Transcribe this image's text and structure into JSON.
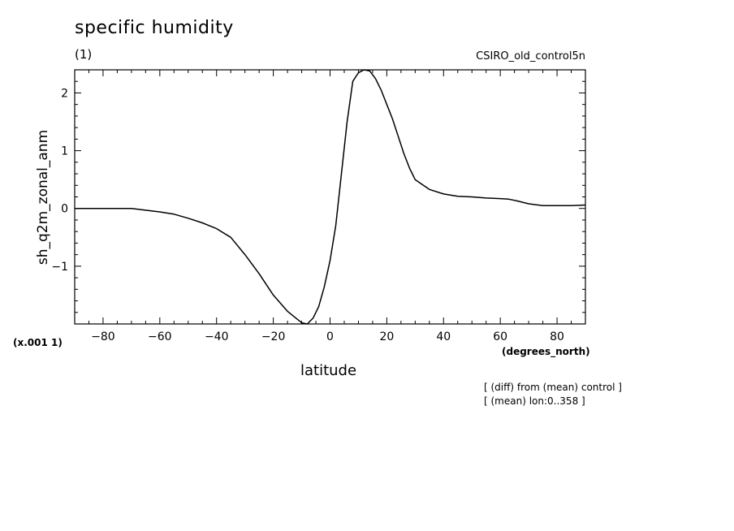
{
  "header": {
    "title": "specific humidity",
    "units": "(1)",
    "source": "CSIRO_old_control5n"
  },
  "footer": {
    "scale_factor": "(x.001 1)",
    "note_diff": "[ (diff) from (mean) control ]",
    "note_mean": "[ (mean) lon:0..358 ]"
  },
  "chart_data": {
    "type": "line",
    "xlabel": "latitude",
    "x_units": "(degrees_north)",
    "ylabel": "sh_q2m_zonal_anm",
    "xlim": [
      -90,
      90
    ],
    "ylim": [
      -2,
      2.4
    ],
    "x_ticks": [
      -80,
      -60,
      -40,
      -20,
      0,
      20,
      40,
      60,
      80
    ],
    "x_tick_labels": [
      "−80",
      "−60",
      "−40",
      "−20",
      "0",
      "20",
      "40",
      "60",
      "80"
    ],
    "y_ticks": [
      -1,
      0,
      1,
      2
    ],
    "y_tick_labels": [
      "−1",
      "0",
      "1",
      "2"
    ],
    "grid": false,
    "series": [
      {
        "x": [
          -90,
          -80,
          -70,
          -65,
          -60,
          -55,
          -50,
          -45,
          -40,
          -35,
          -30,
          -25,
          -20,
          -15,
          -10,
          -8,
          -6,
          -4,
          -2,
          0,
          2,
          4,
          6,
          8,
          10,
          12,
          14,
          16,
          18,
          20,
          22,
          24,
          26,
          28,
          30,
          35,
          40,
          45,
          50,
          55,
          60,
          63,
          66,
          70,
          75,
          80,
          85,
          90
        ],
        "y": [
          0,
          0,
          0,
          -0.03,
          -0.06,
          -0.1,
          -0.17,
          -0.25,
          -0.35,
          -0.5,
          -0.8,
          -1.13,
          -1.5,
          -1.78,
          -1.98,
          -2.0,
          -1.9,
          -1.7,
          -1.35,
          -0.9,
          -0.3,
          0.6,
          1.5,
          2.2,
          2.35,
          2.42,
          2.38,
          2.25,
          2.05,
          1.8,
          1.55,
          1.25,
          0.95,
          0.7,
          0.5,
          0.33,
          0.25,
          0.21,
          0.2,
          0.18,
          0.17,
          0.16,
          0.13,
          0.08,
          0.05,
          0.05,
          0.05,
          0.06
        ]
      }
    ]
  }
}
